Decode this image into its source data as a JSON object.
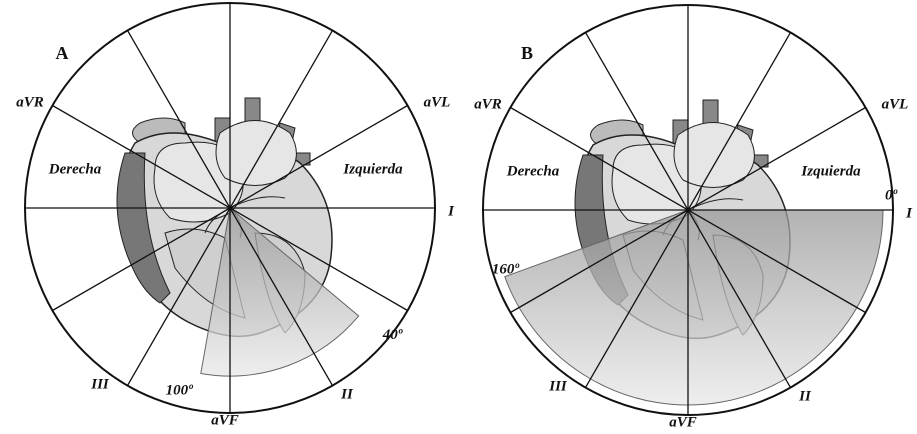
{
  "panels": [
    {
      "letter": "A",
      "leads": [
        "aVR",
        "aVL",
        "I",
        "II",
        "III",
        "aVF"
      ],
      "regions": [
        "Derecha",
        "Izquierda"
      ],
      "sector": {
        "from": {
          "value": 40,
          "label": "40º"
        },
        "to": {
          "value": 100,
          "label": "100º"
        }
      }
    },
    {
      "letter": "B",
      "leads": [
        "aVR",
        "aVL",
        "I",
        "II",
        "III",
        "aVF"
      ],
      "regions": [
        "Derecha",
        "Izquierda"
      ],
      "sector": {
        "from": {
          "value": 0,
          "label": "0º"
        },
        "to": {
          "value": 160,
          "label": "160º"
        }
      }
    }
  ]
}
